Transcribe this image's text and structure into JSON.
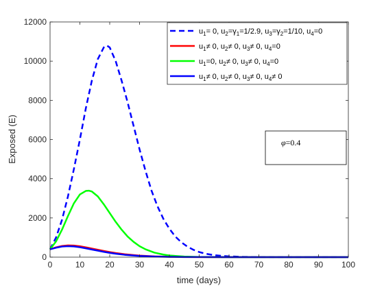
{
  "chart_data": {
    "type": "line",
    "xlabel": "time (days)",
    "ylabel": "Exposed (E)",
    "xlim": [
      0,
      100
    ],
    "ylim": [
      0,
      12000
    ],
    "xticks": [
      0,
      10,
      20,
      30,
      40,
      50,
      60,
      70,
      80,
      90,
      100
    ],
    "yticks": [
      0,
      2000,
      4000,
      6000,
      8000,
      10000,
      12000
    ],
    "grid": false,
    "legend_position": "top-right",
    "series": [
      {
        "name": "u1= 0, u2=γ1=1/2.9, u3=γ2=1/10, u4=0",
        "legend_parts": [
          [
            "u",
            ""
          ],
          [
            "1",
            "sub"
          ],
          [
            "= 0, u",
            ""
          ],
          [
            "2",
            "sub"
          ],
          [
            "=γ",
            ""
          ],
          [
            "1",
            "sub"
          ],
          [
            "=1/2.9, u",
            ""
          ],
          [
            "3",
            "sub"
          ],
          [
            "=γ",
            ""
          ],
          [
            "2",
            "sub"
          ],
          [
            "=1/10, u",
            ""
          ],
          [
            "4",
            "sub"
          ],
          [
            "=0",
            ""
          ]
        ],
        "color": "#0000ff",
        "style": "dashed",
        "x": [
          0,
          2,
          4,
          6,
          8,
          10,
          12,
          14,
          16,
          18,
          19,
          20,
          22,
          24,
          26,
          28,
          30,
          32,
          34,
          36,
          38,
          40,
          42,
          44,
          46,
          48,
          50,
          52,
          55,
          58,
          60,
          65,
          70,
          75,
          80,
          90,
          100
        ],
        "y": [
          400,
          1000,
          1900,
          3100,
          4500,
          6000,
          7600,
          9000,
          10100,
          10700,
          10800,
          10700,
          10000,
          9000,
          7900,
          6700,
          5500,
          4400,
          3400,
          2600,
          1950,
          1450,
          1050,
          760,
          540,
          380,
          260,
          180,
          100,
          60,
          40,
          15,
          5,
          2,
          1,
          0,
          0
        ]
      },
      {
        "name": "u1≠ 0, u2≠ 0, u3≠ 0, u4=0",
        "legend_parts": [
          [
            "u",
            ""
          ],
          [
            "1",
            "sub"
          ],
          [
            "≠ 0, u",
            ""
          ],
          [
            "2",
            "sub"
          ],
          [
            "≠ 0, u",
            ""
          ],
          [
            "3",
            "sub"
          ],
          [
            "≠ 0, u",
            ""
          ],
          [
            "4",
            "sub"
          ],
          [
            "=0",
            ""
          ]
        ],
        "color": "#ff0000",
        "style": "solid",
        "x": [
          0,
          2,
          4,
          6,
          8,
          10,
          12,
          14,
          16,
          18,
          20,
          22,
          25,
          28,
          30,
          35,
          40,
          45,
          50,
          60,
          70,
          80,
          90,
          100
        ],
        "y": [
          400,
          500,
          570,
          600,
          590,
          555,
          500,
          440,
          375,
          315,
          260,
          210,
          150,
          105,
          80,
          40,
          20,
          10,
          5,
          1,
          0,
          0,
          0,
          0
        ]
      },
      {
        "name": "u1=0, u2≠ 0, u3≠ 0, u4=0",
        "legend_parts": [
          [
            "u",
            ""
          ],
          [
            "1",
            "sub"
          ],
          [
            "=0, u",
            ""
          ],
          [
            "2",
            "sub"
          ],
          [
            "≠ 0, u",
            ""
          ],
          [
            "3",
            "sub"
          ],
          [
            "≠ 0, u",
            ""
          ],
          [
            "4",
            "sub"
          ],
          [
            "=0",
            ""
          ]
        ],
        "color": "#00ff00",
        "style": "solid",
        "x": [
          0,
          2,
          4,
          6,
          8,
          10,
          12,
          13,
          14,
          16,
          18,
          20,
          22,
          24,
          26,
          28,
          30,
          32,
          35,
          38,
          40,
          45,
          50,
          55,
          60,
          70,
          80,
          90,
          100
        ],
        "y": [
          400,
          800,
          1400,
          2100,
          2750,
          3200,
          3380,
          3390,
          3350,
          3100,
          2700,
          2250,
          1800,
          1400,
          1050,
          780,
          560,
          400,
          230,
          130,
          85,
          30,
          10,
          4,
          1,
          0,
          0,
          0,
          0
        ]
      },
      {
        "name": "u1≠ 0, u2≠ 0, u3≠ 0, u4≠ 0",
        "legend_parts": [
          [
            "u",
            ""
          ],
          [
            "1",
            "sub"
          ],
          [
            "≠ 0, u",
            ""
          ],
          [
            "2",
            "sub"
          ],
          [
            "≠ 0, u",
            ""
          ],
          [
            "3",
            "sub"
          ],
          [
            "≠ 0, u",
            ""
          ],
          [
            "4",
            "sub"
          ],
          [
            "≠ 0",
            ""
          ]
        ],
        "color": "#0000ff",
        "style": "solid",
        "x": [
          0,
          2,
          4,
          6,
          8,
          10,
          12,
          14,
          16,
          18,
          20,
          22,
          25,
          28,
          30,
          35,
          40,
          45,
          50,
          60,
          70,
          80,
          90,
          100
        ],
        "y": [
          400,
          480,
          540,
          560,
          545,
          505,
          450,
          390,
          330,
          270,
          220,
          175,
          120,
          82,
          62,
          30,
          14,
          6,
          3,
          0,
          0,
          0,
          0,
          0
        ]
      }
    ],
    "annotation": {
      "parts": [
        [
          "φ",
          "italic"
        ],
        [
          "=0.4",
          ""
        ]
      ]
    }
  }
}
